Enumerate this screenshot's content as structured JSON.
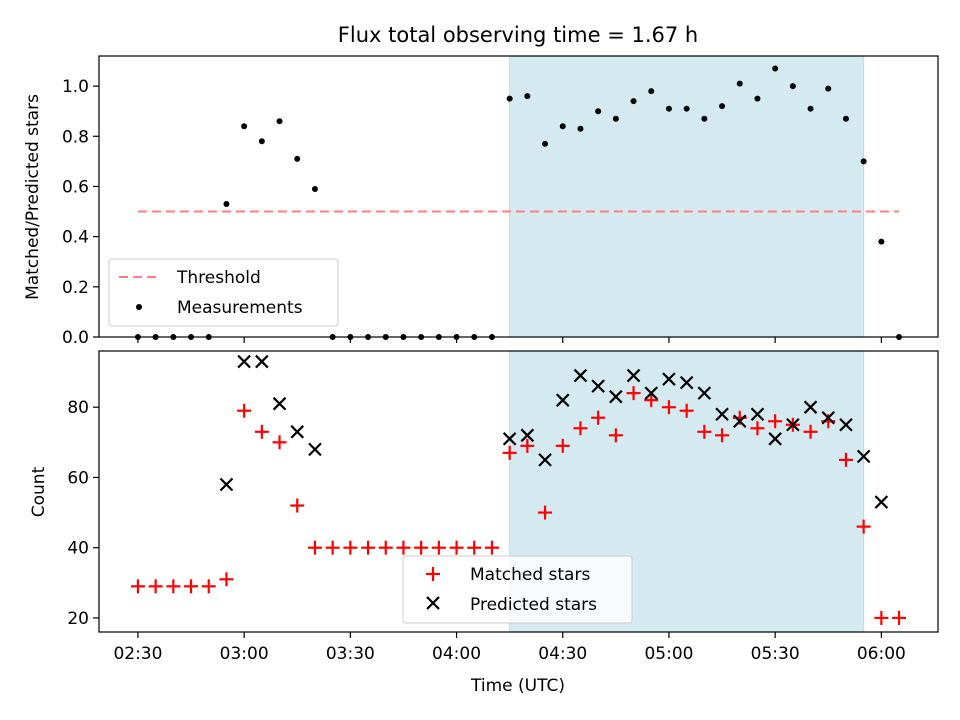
{
  "chart_data": {
    "type": "scatter",
    "title": "Flux total observing time = 1.67 h",
    "xlabel": "Time (UTC)",
    "x_ticks": [
      "02:30",
      "03:00",
      "03:30",
      "04:00",
      "04:30",
      "05:00",
      "05:30",
      "06:00"
    ],
    "x_range": [
      "02:19",
      "06:16"
    ],
    "highlight_band": {
      "start": "04:15",
      "end": "05:55",
      "color": "#d4eaf0"
    },
    "panels": [
      {
        "name": "ratio",
        "ylabel": "Matched/Predicted stars",
        "ylim": [
          0,
          1.12
        ],
        "y_ticks": [
          "0.0",
          "0.2",
          "0.4",
          "0.6",
          "0.8",
          "1.0"
        ],
        "legend_position": "lower-left",
        "threshold": {
          "name": "Threshold",
          "value": 0.5,
          "from": "02:30",
          "to": "06:05",
          "color": "#ff7f7f"
        },
        "series": [
          {
            "name": "Measurements",
            "color": "#000000",
            "x": [
              "02:30",
              "02:35",
              "02:40",
              "02:45",
              "02:50",
              "02:55",
              "03:00",
              "03:05",
              "03:10",
              "03:15",
              "03:20",
              "03:25",
              "03:30",
              "03:35",
              "03:40",
              "03:45",
              "03:50",
              "03:55",
              "04:00",
              "04:05",
              "04:10",
              "04:15",
              "04:20",
              "04:25",
              "04:30",
              "04:35",
              "04:40",
              "04:45",
              "04:50",
              "04:55",
              "05:00",
              "05:05",
              "05:10",
              "05:15",
              "05:20",
              "05:25",
              "05:30",
              "05:35",
              "05:40",
              "05:45",
              "05:50",
              "05:55",
              "06:00",
              "06:05"
            ],
            "y": [
              0,
              0,
              0,
              0,
              0,
              0.53,
              0.84,
              0.78,
              0.86,
              0.71,
              0.59,
              0,
              0,
              0,
              0,
              0,
              0,
              0,
              0,
              0,
              0,
              0.95,
              0.96,
              0.77,
              0.84,
              0.83,
              0.9,
              0.87,
              0.94,
              0.98,
              0.91,
              0.91,
              0.87,
              0.92,
              1.01,
              0.95,
              1.07,
              1.0,
              0.91,
              0.99,
              0.87,
              0.7,
              0.38,
              0
            ]
          }
        ]
      },
      {
        "name": "count",
        "ylabel": "Count",
        "ylim": [
          16,
          96
        ],
        "y_ticks": [
          "20",
          "40",
          "60",
          "80"
        ],
        "legend_position": "lower-center",
        "series": [
          {
            "name": "Matched stars",
            "color": "#ff0000",
            "marker": "plus",
            "x": [
              "02:30",
              "02:35",
              "02:40",
              "02:45",
              "02:50",
              "02:55",
              "03:00",
              "03:05",
              "03:10",
              "03:15",
              "03:20",
              "03:25",
              "03:30",
              "03:35",
              "03:40",
              "03:45",
              "03:50",
              "03:55",
              "04:00",
              "04:05",
              "04:10",
              "04:15",
              "04:20",
              "04:25",
              "04:30",
              "04:35",
              "04:40",
              "04:45",
              "04:50",
              "04:55",
              "05:00",
              "05:05",
              "05:10",
              "05:15",
              "05:20",
              "05:25",
              "05:30",
              "05:35",
              "05:40",
              "05:45",
              "05:50",
              "05:55",
              "06:00",
              "06:05"
            ],
            "y": [
              29,
              29,
              29,
              29,
              29,
              31,
              79,
              73,
              70,
              52,
              40,
              40,
              40,
              40,
              40,
              40,
              40,
              40,
              40,
              40,
              40,
              67,
              69,
              50,
              69,
              74,
              77,
              72,
              84,
              82,
              80,
              79,
              73,
              72,
              77,
              74,
              76,
              75,
              73,
              76,
              65,
              46,
              20,
              20
            ]
          },
          {
            "name": "Predicted stars",
            "color": "#000000",
            "marker": "x",
            "x": [
              "02:55",
              "03:00",
              "03:05",
              "03:10",
              "03:15",
              "03:20",
              "04:15",
              "04:20",
              "04:25",
              "04:30",
              "04:35",
              "04:40",
              "04:45",
              "04:50",
              "04:55",
              "05:00",
              "05:05",
              "05:10",
              "05:15",
              "05:20",
              "05:25",
              "05:30",
              "05:35",
              "05:40",
              "05:45",
              "05:50",
              "05:55",
              "06:00"
            ],
            "y": [
              58,
              93,
              93,
              81,
              73,
              68,
              71,
              72,
              65,
              82,
              89,
              86,
              83,
              89,
              84,
              88,
              87,
              84,
              78,
              76,
              78,
              71,
              75,
              80,
              77,
              75,
              66,
              53
            ]
          }
        ]
      }
    ]
  }
}
